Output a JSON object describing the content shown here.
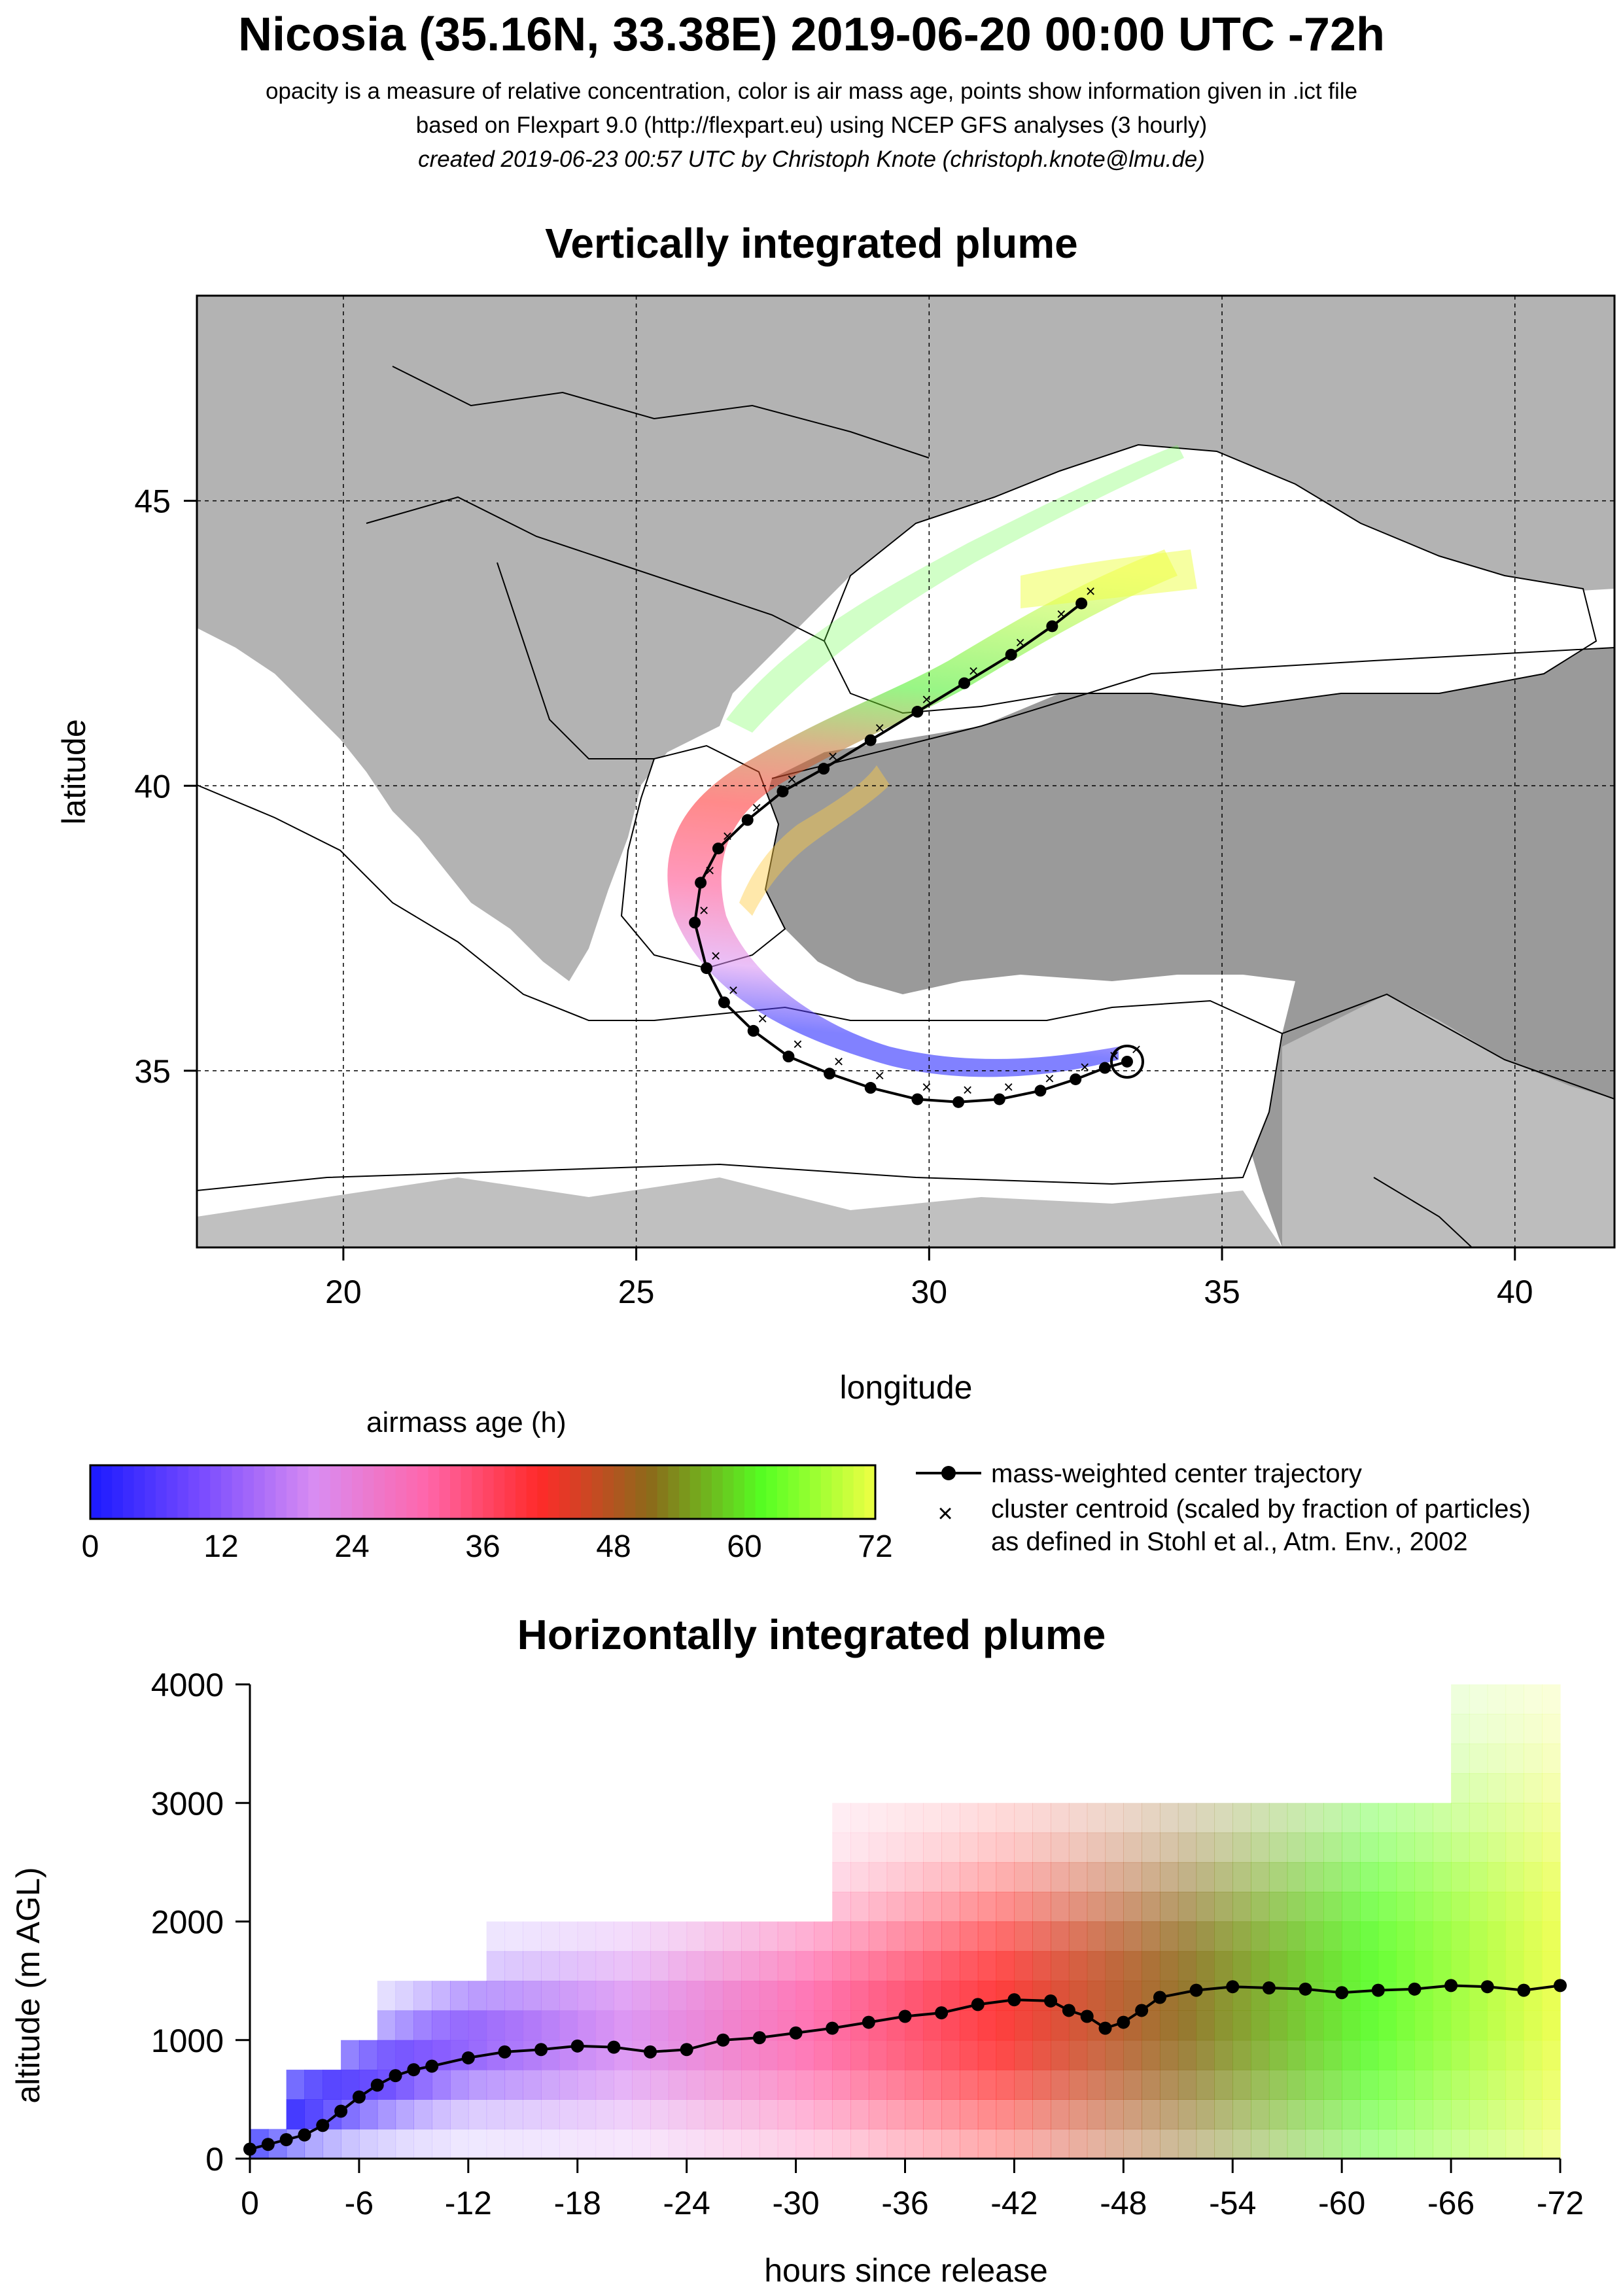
{
  "header": {
    "title": "Nicosia (35.16N, 33.38E) 2019-06-20 00:00 UTC -72h",
    "subtitle_1": "opacity is a measure of relative concentration, color is air mass age, points show information given in .ict file",
    "subtitle_2": "based on Flexpart 9.0 (http://flexpart.eu) using NCEP GFS analyses (3 hourly)",
    "subtitle_3": "created 2019-06-23 00:57 UTC by Christoph Knote (christoph.knote@lmu.de)"
  },
  "colorbar": {
    "title": "airmass age (h)",
    "ticks": [
      "0",
      "12",
      "24",
      "36",
      "48",
      "60",
      "72"
    ],
    "stops": [
      "#1a1aff",
      "#7a4cff",
      "#d98cf2",
      "#ff66aa",
      "#ff2a2a",
      "#8b6b1a",
      "#55ff22",
      "#eeff44"
    ]
  },
  "legend": {
    "line_label": "mass-weighted center trajectory",
    "cross_label_1": "cluster centroid (scaled by fraction of particles)",
    "cross_label_2": "as defined in Stohl et al., Atm. Env., 2002"
  },
  "chart_data": [
    {
      "type": "scatter",
      "title": "Vertically integrated plume",
      "xlabel": "longitude",
      "ylabel": "latitude",
      "xlim": [
        17.5,
        41.7
      ],
      "ylim": [
        31.9,
        48.6
      ],
      "xticks": [
        "20",
        "25",
        "30",
        "35",
        "40"
      ],
      "yticks": [
        "35",
        "40",
        "45"
      ],
      "xtick_values": [
        20,
        25,
        30,
        35,
        40
      ],
      "ytick_values": [
        35,
        40,
        45
      ],
      "grid": true,
      "release_point": {
        "lon": 33.38,
        "lat": 35.16
      },
      "series": [
        {
          "kind": "mass-weighted center trajectory",
          "lon": [
            33.38,
            33.0,
            32.5,
            31.9,
            31.2,
            30.5,
            29.8,
            29.0,
            28.3,
            27.6,
            27.0,
            26.5,
            26.2,
            26.0,
            26.1,
            26.4,
            26.9,
            27.5,
            28.2,
            29.0,
            29.8,
            30.6,
            31.4,
            32.1,
            32.6
          ],
          "lat": [
            35.16,
            35.05,
            34.85,
            34.65,
            34.5,
            34.45,
            34.5,
            34.7,
            34.95,
            35.25,
            35.7,
            36.2,
            36.8,
            37.6,
            38.3,
            38.9,
            39.4,
            39.9,
            40.3,
            40.8,
            41.3,
            41.8,
            42.3,
            42.8,
            43.2
          ],
          "age_h": [
            0,
            3,
            6,
            9,
            12,
            15,
            18,
            21,
            24,
            27,
            30,
            33,
            36,
            39,
            42,
            45,
            48,
            51,
            54,
            57,
            60,
            63,
            66,
            69,
            72
          ]
        }
      ]
    },
    {
      "type": "heatmap",
      "title": "Horizontally integrated plume",
      "xlabel": "hours since release",
      "ylabel": "altitude (m AGL)",
      "xlim": [
        0,
        -72
      ],
      "ylim": [
        0,
        4000
      ],
      "xticks": [
        "0",
        "-6",
        "-12",
        "-18",
        "-24",
        "-30",
        "-36",
        "-42",
        "-48",
        "-54",
        "-60",
        "-66",
        "-72"
      ],
      "yticks": [
        "0",
        "1000",
        "2000",
        "3000",
        "4000"
      ],
      "xtick_values": [
        0,
        -6,
        -12,
        -18,
        -24,
        -30,
        -36,
        -42,
        -48,
        -54,
        -60,
        -66,
        -72
      ],
      "ytick_values": [
        0,
        1000,
        2000,
        3000,
        4000
      ],
      "series": [
        {
          "kind": "mass-weighted center trajectory",
          "hours": [
            0,
            -1,
            -2,
            -3,
            -4,
            -5,
            -6,
            -7,
            -8,
            -9,
            -10,
            -12,
            -14,
            -16,
            -18,
            -20,
            -22,
            -24,
            -26,
            -28,
            -30,
            -32,
            -34,
            -36,
            -38,
            -40,
            -42,
            -44,
            -45,
            -46,
            -47,
            -48,
            -49,
            -50,
            -52,
            -54,
            -56,
            -58,
            -60,
            -62,
            -64,
            -66,
            -68,
            -70,
            -72
          ],
          "altitude": [
            80,
            120,
            160,
            200,
            280,
            400,
            520,
            620,
            700,
            750,
            780,
            850,
            900,
            920,
            950,
            940,
            900,
            920,
            1000,
            1020,
            1060,
            1100,
            1150,
            1200,
            1230,
            1300,
            1340,
            1330,
            1250,
            1200,
            1100,
            1150,
            1250,
            1360,
            1420,
            1450,
            1440,
            1430,
            1400,
            1420,
            1430,
            1460,
            1450,
            1420,
            1460
          ]
        }
      ]
    }
  ]
}
